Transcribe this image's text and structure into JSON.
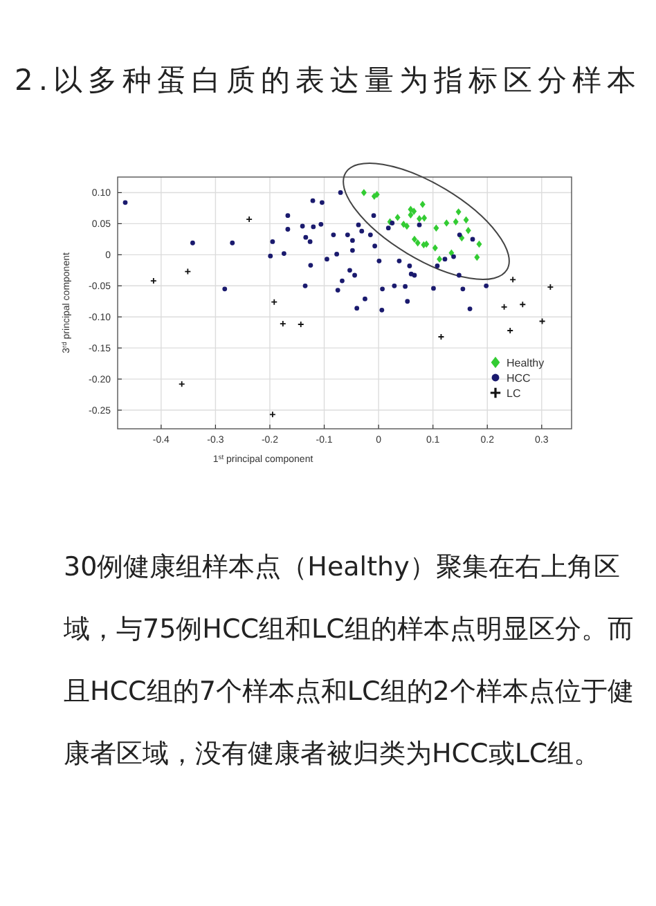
{
  "chart_data": {
    "type": "scatter",
    "title": "2.以多种蛋白质的表达量为指标区分样本",
    "xlabel": "1$^{st}$ principal component",
    "ylabel": "3$^{rd}$ principal component",
    "annotations": [
      "30例健康组样本点（Healthy）聚集在右上角区域，与75例HCC组和LC组的样本点明显区分。而且HCC组的7个样本点和LC组的2个样本点位于健康者区域，没有健康者被归类为HCC或LC组。"
    ],
    "xlim": [
      -0.48,
      0.355
    ],
    "ylim": [
      -0.28,
      0.125
    ],
    "xticks": [
      -0.4,
      -0.3,
      -0.2,
      -0.1,
      0,
      0.1,
      0.2,
      0.3
    ],
    "yticks": [
      {
        "value": 0.1,
        "label": "0.10"
      },
      0.05,
      0,
      -0.05,
      {
        "value": -0.1,
        "label": "-0.10"
      },
      -0.15,
      {
        "value": -0.2,
        "label": "-0.20"
      },
      -0.25
    ],
    "grid": true,
    "legend": "bottom right",
    "series": [
      {
        "name": "Healthy",
        "color": "#33cc33",
        "marker": "diamond",
        "x": [
          -0.027,
          -0.008,
          -0.003,
          0.035,
          0.021,
          0.046,
          0.059,
          0.065,
          0.081,
          0.075,
          0.084,
          0.059,
          0.052,
          0.106,
          0.125,
          0.142,
          0.147,
          0.161,
          0.165,
          0.153,
          0.185,
          0.181,
          0.066,
          0.072,
          0.083,
          0.088,
          0.104,
          0.134,
          0.112
        ],
        "values": [
          0.1,
          0.094,
          0.097,
          0.06,
          0.053,
          0.049,
          0.073,
          0.07,
          0.081,
          0.058,
          0.059,
          0.064,
          0.046,
          0.043,
          0.051,
          0.053,
          0.069,
          0.056,
          0.039,
          0.027,
          0.017,
          -0.004,
          0.025,
          0.019,
          0.016,
          0.017,
          0.011,
          0.003,
          -0.007
        ]
      },
      {
        "name": "HCC",
        "color": "#1a1a6e",
        "marker": "circle",
        "x": [
          -0.466,
          -0.283,
          -0.269,
          -0.199,
          -0.195,
          -0.174,
          -0.167,
          -0.167,
          -0.14,
          -0.342,
          -0.07,
          -0.121,
          -0.104,
          -0.12,
          -0.106,
          -0.134,
          -0.126,
          -0.083,
          -0.057,
          -0.048,
          -0.031,
          -0.015,
          -0.009,
          -0.037,
          -0.007,
          -0.048,
          -0.077,
          -0.095,
          -0.125,
          -0.053,
          -0.044,
          0.001,
          0.038,
          0.057,
          0.06,
          0.066,
          0.108,
          0.122,
          0.138,
          0.148,
          -0.067,
          -0.135,
          -0.075,
          0.007,
          0.029,
          0.049,
          0.101,
          0.155,
          0.198,
          -0.025,
          0.053,
          -0.04,
          0.006,
          0.168,
          0.018,
          0.025,
          0.075,
          0.149,
          0.173
        ],
        "values": [
          0.084,
          -0.055,
          0.019,
          -0.002,
          0.021,
          0.002,
          0.063,
          0.041,
          0.046,
          0.019,
          0.1,
          0.087,
          0.084,
          0.045,
          0.049,
          0.028,
          0.021,
          0.032,
          0.032,
          0.023,
          0.038,
          0.032,
          0.063,
          0.048,
          0.014,
          0.007,
          0.001,
          -0.007,
          -0.017,
          -0.025,
          -0.033,
          -0.01,
          -0.01,
          -0.018,
          -0.031,
          -0.033,
          -0.018,
          -0.007,
          -0.003,
          -0.033,
          -0.042,
          -0.05,
          -0.057,
          -0.055,
          -0.05,
          -0.051,
          -0.054,
          -0.055,
          -0.05,
          -0.071,
          -0.075,
          -0.086,
          -0.089,
          -0.087,
          0.043,
          0.051,
          0.048,
          0.032,
          0.025
        ]
      },
      {
        "name": "LC",
        "color": "#111111",
        "marker": "cross",
        "x": [
          -0.362,
          -0.195,
          0.115,
          0.242,
          0.301,
          0.247,
          0.316,
          -0.414,
          -0.351,
          -0.238,
          0.231,
          0.265,
          -0.192,
          -0.176,
          -0.143
        ],
        "values": [
          -0.208,
          -0.257,
          -0.132,
          -0.122,
          -0.107,
          -0.04,
          -0.052,
          -0.042,
          -0.027,
          0.057,
          -0.084,
          -0.08,
          -0.076,
          -0.111,
          -0.112
        ]
      }
    ]
  }
}
